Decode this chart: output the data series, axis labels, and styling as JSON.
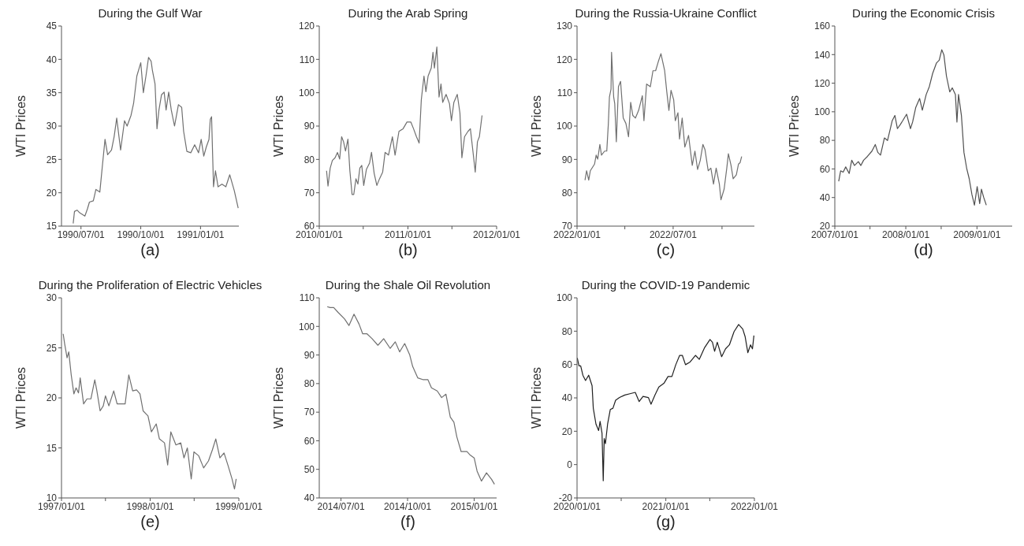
{
  "chart_data": [
    {
      "type": "line",
      "title": "During the Gulf War",
      "ylabel": "WTI Prices",
      "annotations": [
        "(a)"
      ],
      "xlim": [
        "1990-06-01",
        "1991-03-01"
      ],
      "xticks": [
        {
          "value": "1990-07-01",
          "label": "1990/07/01"
        },
        {
          "value": "1990-10-01",
          "label": "1990/10/01"
        },
        {
          "value": "1991-01-01",
          "label": "1991/01/01"
        }
      ],
      "ylim": [
        15,
        45
      ],
      "yticks": [
        15,
        20,
        25,
        30,
        35,
        40,
        45
      ],
      "x": [
        "1990-06-19",
        "1990-06-21",
        "1990-06-25",
        "1990-06-29",
        "1990-07-07",
        "1990-07-11",
        "1990-07-14",
        "1990-07-20",
        "1990-07-24",
        "1990-07-30",
        "1990-08-03",
        "1990-08-07",
        "1990-08-11",
        "1990-08-17",
        "1990-08-21",
        "1990-08-25",
        "1990-08-31",
        "1990-09-06",
        "1990-09-10",
        "1990-09-16",
        "1990-09-20",
        "1990-09-25",
        "1990-10-01",
        "1990-10-05",
        "1990-10-09",
        "1990-10-13",
        "1990-10-17",
        "1990-10-19",
        "1990-10-23",
        "1990-10-26",
        "1990-10-29",
        "1990-11-02",
        "1990-11-06",
        "1990-11-09",
        "1990-11-13",
        "1990-11-17",
        "1990-11-22",
        "1990-11-28",
        "1990-12-03",
        "1990-12-06",
        "1990-12-11",
        "1990-12-17",
        "1990-12-23",
        "1990-12-29",
        "1991-01-02",
        "1991-01-06",
        "1991-01-10",
        "1991-01-14",
        "1991-01-16",
        "1991-01-18",
        "1991-01-21",
        "1991-01-24",
        "1991-01-28",
        "1991-02-03",
        "1991-02-09",
        "1991-02-15",
        "1991-02-22",
        "1991-02-28"
      ],
      "series": [
        {
          "color": "#707070",
          "values": [
            15.4,
            17.2,
            17.4,
            17.0,
            16.5,
            17.6,
            18.6,
            18.8,
            20.5,
            20.1,
            24.1,
            28.0,
            25.7,
            26.4,
            28.4,
            31.2,
            26.4,
            30.8,
            30.0,
            31.6,
            33.4,
            37.5,
            39.5,
            35.0,
            37.5,
            40.3,
            39.7,
            38.3,
            36.3,
            29.6,
            32.4,
            34.7,
            35.1,
            32.4,
            35.1,
            32.4,
            30.0,
            33.2,
            32.8,
            29.2,
            26.2,
            26.0,
            27.2,
            26.0,
            28.0,
            25.5,
            26.9,
            28.0,
            31.0,
            31.4,
            20.9,
            23.3,
            20.9,
            21.3,
            20.9,
            22.7,
            20.3,
            17.7
          ]
        }
      ]
    },
    {
      "type": "line",
      "title": "During the Arab Spring",
      "ylabel": "WTI Prices",
      "annotations": [
        "(b)"
      ],
      "xlim": [
        "2010-01-01",
        "2012-01-01"
      ],
      "xticks": [
        {
          "value": "2010-01-01",
          "label": "2010/01/01"
        },
        {
          "value": "2010-07-01",
          "label": null
        },
        {
          "value": "2011-01-01",
          "label": "2011/01/01"
        },
        {
          "value": "2011-07-01",
          "label": null
        },
        {
          "value": "2012-01-01",
          "label": "2012/01/01"
        }
      ],
      "ylim": [
        60,
        120
      ],
      "yticks": [
        60,
        70,
        80,
        90,
        100,
        110,
        120
      ],
      "x": [
        "2010-01-31",
        "2010-02-06",
        "2010-02-15",
        "2010-02-24",
        "2010-03-07",
        "2010-03-17",
        "2010-03-26",
        "2010-04-03",
        "2010-04-11",
        "2010-04-19",
        "2010-04-29",
        "2010-05-07",
        "2010-05-16",
        "2010-05-23",
        "2010-06-01",
        "2010-06-09",
        "2010-06-17",
        "2010-06-25",
        "2010-07-03",
        "2010-07-14",
        "2010-07-27",
        "2010-08-04",
        "2010-08-15",
        "2010-08-26",
        "2010-09-06",
        "2010-09-19",
        "2010-09-29",
        "2010-10-13",
        "2010-10-29",
        "2010-11-09",
        "2010-11-25",
        "2010-12-12",
        "2010-12-28",
        "2011-01-13",
        "2011-01-24",
        "2011-02-05",
        "2011-02-16",
        "2011-02-25",
        "2011-03-08",
        "2011-03-16",
        "2011-03-25",
        "2011-04-07",
        "2011-04-14",
        "2011-04-20",
        "2011-04-30",
        "2011-05-09",
        "2011-05-17",
        "2011-05-24",
        "2011-06-07",
        "2011-06-21",
        "2011-06-29",
        "2011-07-09",
        "2011-07-23",
        "2011-08-03",
        "2011-08-11",
        "2011-08-22",
        "2011-09-05",
        "2011-09-15",
        "2011-09-26",
        "2011-10-05",
        "2011-10-14",
        "2011-10-22",
        "2011-11-02"
      ],
      "series": [
        {
          "color": "#707070",
          "values": [
            76.6,
            72.0,
            77.4,
            79.7,
            80.5,
            82.1,
            80.1,
            86.8,
            85.3,
            82.5,
            86.1,
            76.6,
            69.5,
            69.5,
            74.2,
            72.6,
            77.4,
            78.2,
            72.2,
            77.0,
            78.9,
            82.1,
            75.8,
            72.2,
            74.2,
            76.2,
            82.1,
            81.3,
            86.8,
            81.3,
            88.4,
            89.2,
            91.2,
            91.2,
            89.2,
            86.8,
            84.9,
            97.9,
            105.0,
            100.3,
            105.0,
            107.4,
            112.1,
            107.4,
            113.7,
            98.7,
            102.6,
            97.1,
            99.5,
            96.7,
            91.6,
            97.1,
            99.5,
            93.9,
            80.5,
            86.8,
            88.4,
            89.2,
            82.1,
            76.2,
            85.3,
            86.8,
            93.2
          ]
        }
      ]
    },
    {
      "type": "line",
      "title": "During the Russia-Ukraine Conflict",
      "ylabel": "WTI Prices",
      "annotations": [
        "(c)"
      ],
      "xlim": [
        "2022-01-01",
        "2022-12-01"
      ],
      "xticks": [
        {
          "value": "2022-01-01",
          "label": "2022/01/01"
        },
        {
          "value": "2022-04-01",
          "label": null
        },
        {
          "value": "2022-07-01",
          "label": "2022/07/01"
        },
        {
          "value": "2022-10-01",
          "label": null
        }
      ],
      "ylim": [
        70,
        130
      ],
      "yticks": [
        70,
        80,
        90,
        100,
        110,
        120,
        130
      ],
      "x": [
        "2022-01-16",
        "2022-01-19",
        "2022-01-23",
        "2022-01-26",
        "2022-02-03",
        "2022-02-06",
        "2022-02-09",
        "2022-02-13",
        "2022-02-16",
        "2022-02-22",
        "2022-02-26",
        "2022-03-01",
        "2022-03-03",
        "2022-03-06",
        "2022-03-07",
        "2022-03-11",
        "2022-03-13",
        "2022-03-16",
        "2022-03-20",
        "2022-03-24",
        "2022-03-29",
        "2022-04-03",
        "2022-04-08",
        "2022-04-12",
        "2022-04-16",
        "2022-04-21",
        "2022-04-27",
        "2022-05-04",
        "2022-05-07",
        "2022-05-12",
        "2022-05-19",
        "2022-05-24",
        "2022-05-29",
        "2022-06-03",
        "2022-06-08",
        "2022-06-15",
        "2022-06-19",
        "2022-06-23",
        "2022-06-27",
        "2022-07-02",
        "2022-07-05",
        "2022-07-10",
        "2022-07-13",
        "2022-07-18",
        "2022-07-23",
        "2022-07-30",
        "2022-08-06",
        "2022-08-11",
        "2022-08-16",
        "2022-08-21",
        "2022-08-26",
        "2022-08-30",
        "2022-09-05",
        "2022-09-10",
        "2022-09-15",
        "2022-09-20",
        "2022-09-26",
        "2022-09-29",
        "2022-10-05",
        "2022-10-10",
        "2022-10-13",
        "2022-10-18",
        "2022-10-22",
        "2022-10-28",
        "2022-11-01",
        "2022-11-04",
        "2022-11-07"
      ],
      "series": [
        {
          "color": "#707070",
          "values": [
            83.8,
            86.6,
            83.8,
            86.6,
            88.6,
            91.3,
            90.1,
            94.5,
            91.3,
            92.5,
            92.5,
            100.8,
            108.7,
            111.1,
            122.1,
            108.7,
            106.7,
            95.3,
            111.8,
            113.4,
            102.4,
            100.8,
            96.8,
            107.1,
            103.2,
            102.4,
            104.7,
            109.1,
            101.6,
            112.6,
            111.8,
            116.6,
            116.6,
            119.3,
            121.7,
            116.6,
            110.3,
            104.7,
            110.7,
            107.9,
            101.6,
            104.0,
            96.1,
            102.4,
            93.7,
            97.2,
            88.2,
            92.5,
            87.0,
            89.7,
            94.5,
            92.9,
            86.6,
            87.4,
            82.6,
            87.4,
            82.6,
            77.9,
            81.1,
            87.4,
            91.7,
            88.2,
            84.2,
            85.4,
            88.6,
            89.0,
            90.9
          ]
        }
      ]
    },
    {
      "type": "line",
      "title": "During the Economic Crisis",
      "ylabel": "WTI Prices",
      "annotations": [
        "(d)"
      ],
      "xlim": [
        "2007-01-01",
        "2009-07-01"
      ],
      "xticks": [
        {
          "value": "2007-01-01",
          "label": "2007/01/01"
        },
        {
          "value": "2007-07-01",
          "label": null
        },
        {
          "value": "2008-01-01",
          "label": "2008/01/01"
        },
        {
          "value": "2008-07-01",
          "label": null
        },
        {
          "value": "2009-01-01",
          "label": "2009/01/01"
        }
      ],
      "ylim": [
        20,
        160
      ],
      "yticks": [
        20,
        40,
        60,
        80,
        100,
        120,
        140,
        160
      ],
      "x": [
        "2007-01-21",
        "2007-01-31",
        "2007-02-13",
        "2007-02-26",
        "2007-03-16",
        "2007-03-29",
        "2007-04-12",
        "2007-05-02",
        "2007-05-15",
        "2007-05-29",
        "2007-06-18",
        "2007-07-11",
        "2007-07-28",
        "2007-08-10",
        "2007-08-24",
        "2007-09-13",
        "2007-09-29",
        "2007-10-23",
        "2007-11-06",
        "2007-11-19",
        "2007-12-03",
        "2007-12-16",
        "2008-01-05",
        "2008-01-25",
        "2008-02-05",
        "2008-02-21",
        "2008-03-12",
        "2008-03-26",
        "2008-04-15",
        "2008-05-01",
        "2008-05-18",
        "2008-06-07",
        "2008-06-21",
        "2008-07-04",
        "2008-07-15",
        "2008-07-28",
        "2008-08-14",
        "2008-08-27",
        "2008-09-12",
        "2008-09-20",
        "2008-09-28",
        "2008-10-13",
        "2008-10-26",
        "2008-11-09",
        "2008-11-22",
        "2008-12-06",
        "2008-12-19",
        "2009-01-02",
        "2009-01-15",
        "2009-01-24",
        "2009-02-04",
        "2009-02-18"
      ],
      "series": [
        {
          "color": "#505050",
          "values": [
            51.3,
            58.7,
            57.8,
            61.4,
            56.8,
            66.1,
            62.4,
            65.1,
            62.4,
            66.1,
            68.8,
            72.5,
            77.1,
            71.6,
            69.7,
            81.7,
            79.9,
            93.7,
            97.4,
            88.2,
            90.9,
            93.7,
            98.3,
            88.2,
            92.8,
            102.9,
            109.3,
            101.1,
            112.1,
            117.6,
            126.8,
            134.2,
            136.1,
            143.4,
            139.7,
            125.0,
            113.9,
            116.7,
            112.1,
            92.8,
            112.1,
            97.4,
            71.6,
            60.5,
            53.2,
            42.1,
            34.7,
            47.6,
            35.7,
            45.8,
            40.3,
            34.7
          ]
        }
      ]
    },
    {
      "type": "line",
      "title": "During the Proliferation of Electric Vehicles",
      "ylabel": "WTI Prices",
      "annotations": [
        "(e)"
      ],
      "xlim": [
        "1997-01-01",
        "1999-01-01"
      ],
      "xticks": [
        {
          "value": "1997-01-01",
          "label": "1997/01/01"
        },
        {
          "value": "1997-07-01",
          "label": null
        },
        {
          "value": "1998-01-01",
          "label": "1998/01/01"
        },
        {
          "value": "1998-07-01",
          "label": null
        },
        {
          "value": "1999-01-01",
          "label": "1999/01/01"
        }
      ],
      "ylim": [
        10,
        30
      ],
      "yticks": [
        10,
        15,
        20,
        25,
        30
      ],
      "x": [
        "1997-01-08",
        "1997-01-14",
        "1997-01-24",
        "1997-01-31",
        "1997-02-10",
        "1997-02-21",
        "1997-03-02",
        "1997-03-12",
        "1997-03-19",
        "1997-04-02",
        "1997-04-16",
        "1997-05-02",
        "1997-05-18",
        "1997-05-26",
        "1997-06-09",
        "1997-06-22",
        "1997-07-01",
        "1997-07-15",
        "1997-08-04",
        "1997-08-18",
        "1997-09-07",
        "1997-09-20",
        "1997-10-05",
        "1997-10-21",
        "1997-11-06",
        "1997-11-20",
        "1997-12-03",
        "1997-12-23",
        "1998-01-06",
        "1998-01-26",
        "1998-02-08",
        "1998-03-01",
        "1998-03-14",
        "1998-03-27",
        "1998-04-17",
        "1998-05-07",
        "1998-05-20",
        "1998-06-03",
        "1998-06-19",
        "1998-06-30",
        "1998-07-20",
        "1998-08-09",
        "1998-08-29",
        "1998-09-14",
        "1998-09-28",
        "1998-10-15",
        "1998-11-01",
        "1998-11-18",
        "1998-12-04",
        "1998-12-14",
        "1998-12-21"
      ],
      "series": [
        {
          "color": "#707070",
          "values": [
            26.4,
            25.4,
            24.0,
            24.6,
            22.3,
            20.4,
            21.0,
            20.5,
            22.0,
            19.4,
            19.9,
            19.9,
            21.8,
            20.8,
            18.7,
            19.2,
            20.2,
            19.2,
            20.7,
            19.4,
            19.4,
            19.4,
            22.3,
            20.7,
            20.8,
            20.4,
            18.7,
            18.2,
            16.6,
            17.4,
            15.9,
            15.5,
            13.3,
            16.6,
            15.3,
            15.5,
            14.0,
            15.0,
            11.9,
            14.6,
            14.2,
            13.0,
            13.7,
            14.8,
            15.9,
            14.0,
            14.5,
            13.2,
            11.9,
            10.9,
            11.9
          ]
        }
      ]
    },
    {
      "type": "line",
      "title": "During the Shale Oil Revolution",
      "ylabel": "WTI Prices",
      "annotations": [
        "(f)"
      ],
      "xlim": [
        "2014-06-01",
        "2015-02-01"
      ],
      "xticks": [
        {
          "value": "2014-07-01",
          "label": "2014/07/01"
        },
        {
          "value": "2014-10-01",
          "label": "2014/10/01"
        },
        {
          "value": "2015-01-01",
          "label": "2015/01/01"
        }
      ],
      "ylim": [
        40,
        110
      ],
      "yticks": [
        40,
        50,
        60,
        70,
        80,
        90,
        100,
        110
      ],
      "x": [
        "2014-06-12",
        "2014-06-16",
        "2014-06-21",
        "2014-06-27",
        "2014-07-06",
        "2014-07-12",
        "2014-07-19",
        "2014-07-26",
        "2014-07-31",
        "2014-08-06",
        "2014-08-13",
        "2014-08-21",
        "2014-08-29",
        "2014-09-07",
        "2014-09-14",
        "2014-09-20",
        "2014-09-27",
        "2014-10-04",
        "2014-10-08",
        "2014-10-15",
        "2014-10-22",
        "2014-10-29",
        "2014-11-03",
        "2014-11-11",
        "2014-11-17",
        "2014-11-23",
        "2014-11-29",
        "2014-12-04",
        "2014-12-08",
        "2014-12-14",
        "2014-12-22",
        "2014-12-26",
        "2015-01-01",
        "2015-01-05",
        "2015-01-11",
        "2015-01-18",
        "2015-01-25",
        "2015-01-29"
      ],
      "series": [
        {
          "color": "#707070",
          "values": [
            106.9,
            106.6,
            106.6,
            104.9,
            102.6,
            100.3,
            104.3,
            100.8,
            97.4,
            97.4,
            95.7,
            93.4,
            95.7,
            92.3,
            94.6,
            91.1,
            94.0,
            90.0,
            86.0,
            82.0,
            81.4,
            81.4,
            78.5,
            77.4,
            75.1,
            76.3,
            68.3,
            66.5,
            61.4,
            56.2,
            56.2,
            55.1,
            54.0,
            49.4,
            45.9,
            48.8,
            46.5,
            44.8
          ]
        }
      ]
    },
    {
      "type": "line",
      "title": "During the COVID-19 Pandemic",
      "ylabel": "WTI Prices",
      "annotations": [
        "(g)"
      ],
      "xlim": [
        "2020-01-01",
        "2022-01-01"
      ],
      "xticks": [
        {
          "value": "2020-01-01",
          "label": "2020/01/01"
        },
        {
          "value": "2020-07-01",
          "label": null
        },
        {
          "value": "2021-01-01",
          "label": "2021/01/01"
        },
        {
          "value": "2021-07-01",
          "label": null
        },
        {
          "value": "2022-01-01",
          "label": "2022/01/01"
        }
      ],
      "ylim": [
        -20,
        100
      ],
      "yticks": [
        -20,
        0,
        20,
        40,
        60,
        80,
        100
      ],
      "x": [
        "2020-01-02",
        "2020-01-09",
        "2020-01-16",
        "2020-01-25",
        "2020-02-05",
        "2020-02-18",
        "2020-03-03",
        "2020-03-08",
        "2020-03-19",
        "2020-03-30",
        "2020-04-05",
        "2020-04-13",
        "2020-04-18",
        "2020-04-22",
        "2020-04-27",
        "2020-05-06",
        "2020-05-17",
        "2020-05-28",
        "2020-06-08",
        "2020-06-24",
        "2020-07-16",
        "2020-08-06",
        "2020-08-28",
        "2020-09-13",
        "2020-09-29",
        "2020-10-21",
        "2020-11-01",
        "2020-11-17",
        "2020-12-03",
        "2020-12-25",
        "2021-01-10",
        "2021-01-26",
        "2021-02-11",
        "2021-02-27",
        "2021-03-10",
        "2021-03-23",
        "2021-04-11",
        "2021-05-03",
        "2021-05-19",
        "2021-06-10",
        "2021-07-02",
        "2021-07-12",
        "2021-07-21",
        "2021-08-01",
        "2021-08-19",
        "2021-09-04",
        "2021-09-20",
        "2021-10-09",
        "2021-10-28",
        "2021-11-14",
        "2021-11-24",
        "2021-12-05",
        "2021-12-16",
        "2021-12-24",
        "2021-12-30"
      ],
      "series": [
        {
          "color": "#202020",
          "values": [
            63.9,
            59.2,
            59.2,
            53.6,
            50.4,
            53.6,
            47.3,
            33.8,
            24.3,
            20.4,
            25.9,
            18.8,
            -9.7,
            15.6,
            12.5,
            24.3,
            33.0,
            33.8,
            38.6,
            40.2,
            41.7,
            42.5,
            43.3,
            37.8,
            40.9,
            40.2,
            36.2,
            41.7,
            46.5,
            48.9,
            52.8,
            52.8,
            59.9,
            65.5,
            65.5,
            59.9,
            61.5,
            65.5,
            63.1,
            70.2,
            75.0,
            73.4,
            67.9,
            73.4,
            64.7,
            69.4,
            71.8,
            79.7,
            84.0,
            81.3,
            76.6,
            67.1,
            71.8,
            69.4,
            77.4
          ]
        }
      ]
    }
  ]
}
